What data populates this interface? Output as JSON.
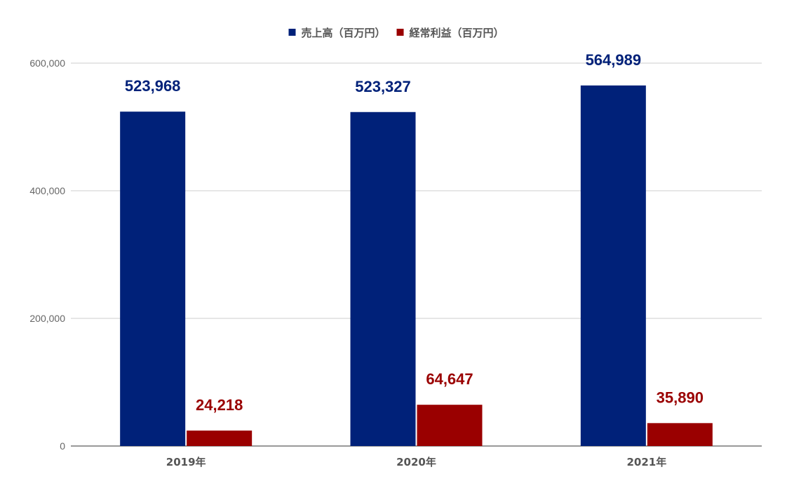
{
  "chart_data": {
    "type": "bar",
    "categories": [
      "2019年",
      "2020年",
      "2021年"
    ],
    "series": [
      {
        "name": "売上高（百万円）",
        "values": [
          523968,
          523327,
          564989
        ],
        "labels": [
          "523,968",
          "523,327",
          "564,989"
        ],
        "color": "#002179"
      },
      {
        "name": "経常利益（百万円）",
        "values": [
          24218,
          64647,
          35890
        ],
        "labels": [
          "24,218",
          "64,647",
          "35,890"
        ],
        "color": "#9a0000"
      }
    ],
    "yticks": [
      "0",
      "200,000",
      "400,000",
      "600,000"
    ],
    "ytick_values": [
      0,
      200000,
      400000,
      600000
    ],
    "ylim": [
      0,
      600000
    ],
    "grid": true,
    "legend_position": "top"
  }
}
